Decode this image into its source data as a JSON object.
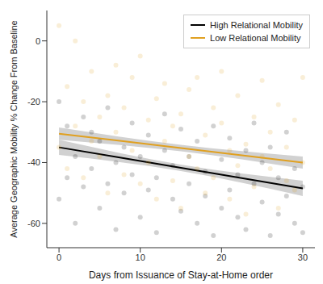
{
  "chart_data": {
    "type": "scatter",
    "x_label": "Days from Issuance of Stay-at-Home order",
    "y_label": "Average Geographic Mobility % Change From Baseline",
    "xlim": [
      -1.5,
      31.5
    ],
    "xticks": [
      0,
      10,
      20,
      30
    ],
    "ylim": [
      -68,
      10
    ],
    "yticks": [
      -60,
      -40,
      -20,
      0
    ],
    "grid": false,
    "legend": "top-right",
    "marker": "circle",
    "series": [
      {
        "name": "High Relational Mobility",
        "color": "#000000",
        "x": [
          0,
          0,
          1,
          1,
          2,
          2,
          3,
          3,
          4,
          4,
          5,
          5,
          6,
          6,
          7,
          7,
          8,
          8,
          9,
          9,
          10,
          10,
          11,
          11,
          12,
          12,
          13,
          13,
          14,
          14,
          15,
          15,
          16,
          16,
          17,
          17,
          18,
          18,
          19,
          19,
          20,
          20,
          21,
          21,
          22,
          22,
          23,
          23,
          24,
          24,
          25,
          25,
          26,
          26,
          27,
          27,
          28,
          28,
          29,
          29,
          30,
          30
        ],
        "values": [
          -20,
          -52,
          -28,
          -45,
          -38,
          -60,
          -25,
          -48,
          -42,
          -30,
          -55,
          -33,
          -22,
          -47,
          -40,
          -62,
          -35,
          -50,
          -27,
          -44,
          -58,
          -38,
          -31,
          -49,
          -45,
          -63,
          -36,
          -24,
          -52,
          -41,
          -29,
          -56,
          -47,
          -38,
          -60,
          -33,
          -43,
          -51,
          -28,
          -64,
          -39,
          -55,
          -49,
          -32,
          -58,
          -44,
          -36,
          -62,
          -47,
          -27,
          -53,
          -40,
          -64,
          -35,
          -45,
          -57,
          -30,
          -51,
          -60,
          -42,
          -48,
          -63
        ],
        "fit": {
          "x": [
            0,
            15,
            30
          ],
          "values": [
            -35,
            -41.75,
            -48.5
          ],
          "lower": [
            -37.5,
            -42.8,
            -51
          ],
          "upper": [
            -32.5,
            -40.7,
            -46
          ]
        }
      },
      {
        "name": "Low Relational Mobility",
        "color": "#E0A020",
        "x": [
          0,
          0,
          1,
          1,
          2,
          2,
          3,
          3,
          4,
          4,
          5,
          5,
          6,
          6,
          7,
          7,
          8,
          8,
          9,
          9,
          10,
          10,
          11,
          11,
          12,
          12,
          13,
          13,
          14,
          14,
          15,
          15,
          16,
          16,
          17,
          17,
          18,
          18,
          19,
          19,
          20,
          20,
          21,
          21,
          22,
          22,
          23,
          23,
          24,
          24,
          25,
          25,
          26,
          26,
          27,
          27,
          28,
          28,
          29,
          29,
          30,
          30
        ],
        "values": [
          5,
          -35,
          -15,
          -42,
          -28,
          0,
          -45,
          -20,
          -10,
          -33,
          -38,
          -25,
          -50,
          -18,
          -30,
          -8,
          -22,
          -44,
          -36,
          -12,
          -5,
          -47,
          -40,
          -26,
          -19,
          -52,
          -33,
          -14,
          -46,
          -28,
          -24,
          -55,
          -38,
          -16,
          -12,
          -42,
          -31,
          -50,
          -45,
          -22,
          -27,
          -10,
          -52,
          -36,
          -18,
          -41,
          -34,
          -57,
          -48,
          -25,
          -13,
          -38,
          -42,
          -30,
          -55,
          -21,
          -35,
          -46,
          -26,
          -49,
          -40,
          -12
        ],
        "fit": {
          "x": [
            0,
            15,
            30
          ],
          "values": [
            -30.5,
            -35.25,
            -40
          ],
          "lower": [
            -32.5,
            -36.3,
            -42
          ],
          "upper": [
            -28.5,
            -34.2,
            -38
          ]
        }
      }
    ]
  }
}
